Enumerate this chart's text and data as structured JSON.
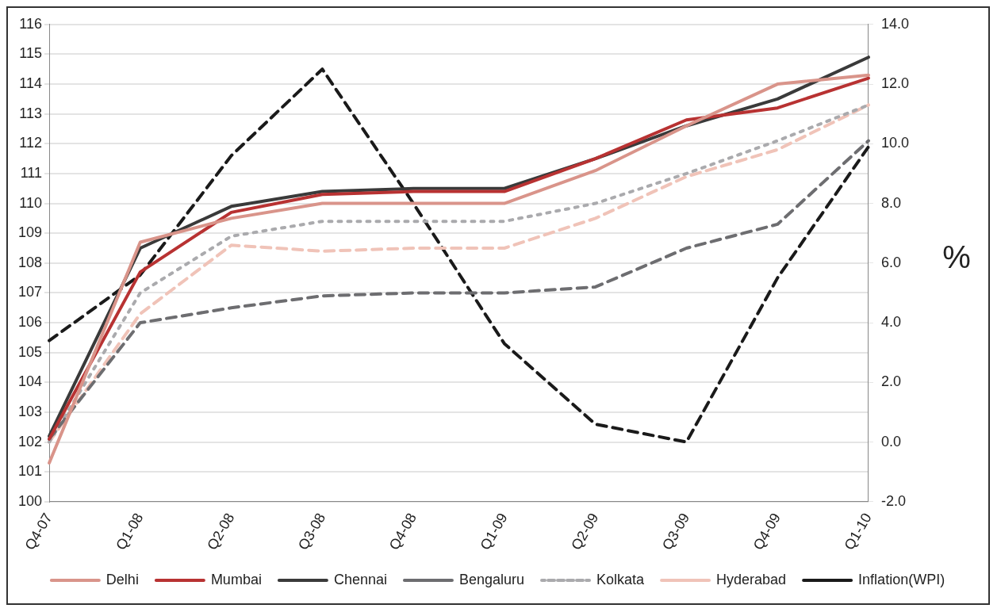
{
  "chart_data": {
    "type": "line",
    "y2label": "%",
    "categories": [
      "Q4-07",
      "Q1-08",
      "Q2-08",
      "Q3-08",
      "Q4-08",
      "Q1-09",
      "Q2-09",
      "Q3-09",
      "Q4-09",
      "Q1-10"
    ],
    "series": [
      {
        "name": "Delhi",
        "color": "#d9948a",
        "line_style": "solid",
        "values": [
          101.3,
          108.7,
          109.5,
          110.0,
          110.0,
          110.0,
          111.1,
          112.6,
          114.0,
          114.3
        ]
      },
      {
        "name": "Mumbai",
        "color": "#b83232",
        "line_style": "solid",
        "values": [
          102.1,
          107.7,
          109.7,
          110.3,
          110.4,
          110.4,
          111.5,
          112.8,
          113.2,
          114.2
        ]
      },
      {
        "name": "Chennai",
        "color": "#3a3a3a",
        "line_style": "solid",
        "values": [
          102.2,
          108.5,
          109.9,
          110.4,
          110.5,
          110.5,
          111.5,
          112.6,
          113.5,
          114.9
        ]
      },
      {
        "name": "Bengaluru",
        "color": "#6d6d70",
        "line_style": "dashed",
        "values": [
          102.1,
          106.0,
          106.5,
          106.9,
          107.0,
          107.0,
          107.2,
          108.5,
          109.3,
          112.1
        ]
      },
      {
        "name": "Kolkata",
        "color": "#aaaaad",
        "line_style": "dotted",
        "values": [
          102.0,
          107.0,
          108.9,
          109.4,
          109.4,
          109.4,
          110.0,
          111.0,
          112.1,
          113.3
        ]
      },
      {
        "name": "Hyderabad",
        "color": "#f0c3b8",
        "line_style": "dashed",
        "values": [
          102.0,
          106.3,
          108.6,
          108.4,
          108.5,
          108.5,
          109.5,
          110.9,
          111.8,
          113.3
        ]
      },
      {
        "name": "Inflation(WPI)",
        "color": "#1a1a1a",
        "line_style": "dashed",
        "axis": "y2",
        "values": [
          3.4,
          5.6,
          9.6,
          12.5,
          8.0,
          3.3,
          0.6,
          0.0,
          5.5,
          9.9
        ]
      }
    ],
    "ylim": [
      100,
      116
    ],
    "yticks": [
      100,
      101,
      102,
      103,
      104,
      105,
      106,
      107,
      108,
      109,
      110,
      111,
      112,
      113,
      114,
      115,
      116
    ],
    "y2lim": [
      -2,
      14
    ],
    "y2ticks": [
      {
        "value": -2,
        "label": "-2.0"
      },
      {
        "value": 0,
        "label": "0.0"
      },
      {
        "value": 2,
        "label": "2.0"
      },
      {
        "value": 4,
        "label": "4.0"
      },
      {
        "value": 6,
        "label": "6.0"
      },
      {
        "value": 8,
        "label": "8.0"
      },
      {
        "value": 10,
        "label": "10.0"
      },
      {
        "value": 12,
        "label": "12.0"
      },
      {
        "value": 14,
        "label": "14.0"
      }
    ],
    "grid": "y",
    "legend": "bottom",
    "marker": "none"
  }
}
